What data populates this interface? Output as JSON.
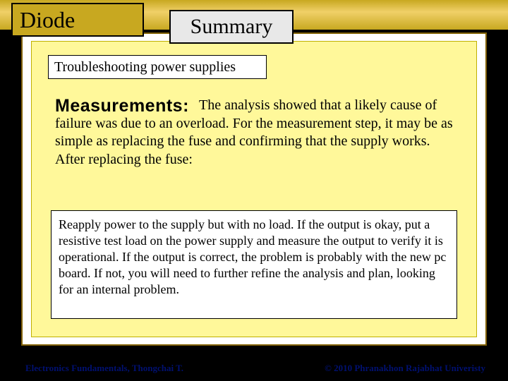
{
  "colors": {
    "gold_bar": "#c8a820",
    "gold_bar_highlight": "#f0d068",
    "yellow_panel": "#fff89a",
    "panel_border": "#806000",
    "footer_text": "#001070",
    "black": "#000000",
    "white": "#ffffff",
    "gray_box": "#e8e8e8"
  },
  "typography": {
    "title_font": "Times New Roman",
    "label_font": "Arial",
    "title_size_pt": 32,
    "summary_size_pt": 30,
    "subheader_size_pt": 20,
    "measure_label_size_pt": 25,
    "body_size_pt": 20,
    "step_size_pt": 18,
    "footer_size_pt": 13
  },
  "header": {
    "diode_label": "Diode",
    "summary_label": "Summary"
  },
  "subheader": {
    "text": "Troubleshooting power supplies"
  },
  "section_label": {
    "measurements": "Measurements:"
  },
  "body": {
    "paragraph": "The analysis showed that a likely cause of failure was due to an overload. For the measurement step, it may be as simple as replacing the fuse and confirming that the supply works. After replacing the fuse:"
  },
  "step": {
    "text": "Reapply power to the supply but with no load. If the output is okay, put a resistive test load on the power supply and measure the output to verify it is operational. If the output is correct, the problem is probably with the new pc board. If not, you will need to further refine the analysis and plan, looking for an internal problem."
  },
  "footer": {
    "left": "Electronics Fundamentals,  Thongchai T.",
    "right": "© 2010 Phranakhon Rajabhat Univeristy"
  }
}
